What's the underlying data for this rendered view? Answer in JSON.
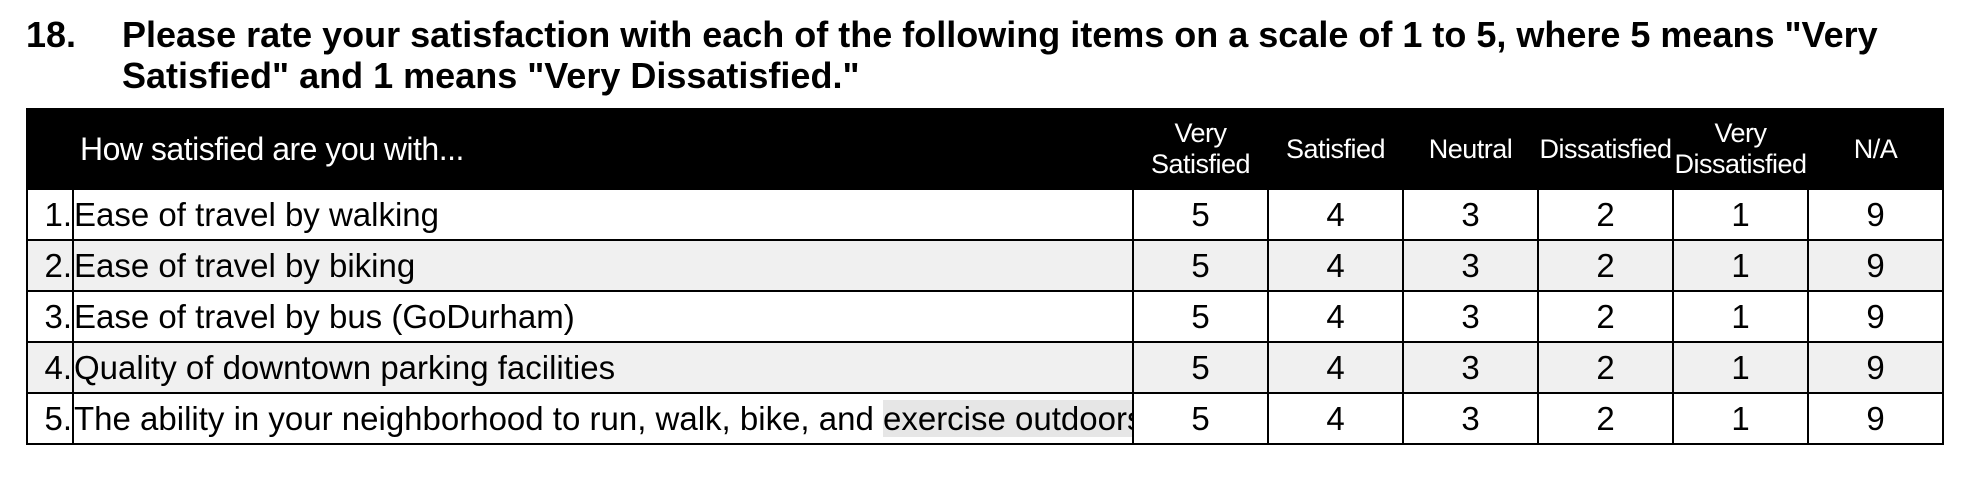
{
  "question": {
    "number": "18.",
    "text": "Please rate your satisfaction with each of the following items on a scale of 1 to 5, where 5 means \"Very Satisfied\" and 1 means \"Very Dissatisfied.\""
  },
  "table": {
    "header": {
      "item_label": "How satisfied are you with...",
      "columns": [
        "Very Satisfied",
        "Satisfied",
        "Neutral",
        "Dissatisfied",
        "Very Dissatisfied",
        "N/A"
      ]
    },
    "rows": [
      {
        "number": "1.",
        "label": "Ease of travel by walking",
        "values": [
          "5",
          "4",
          "3",
          "2",
          "1",
          "9"
        ]
      },
      {
        "number": "2.",
        "label": "Ease of travel by biking",
        "values": [
          "5",
          "4",
          "3",
          "2",
          "1",
          "9"
        ]
      },
      {
        "number": "3.",
        "label": "Ease of travel by bus (GoDurham)",
        "values": [
          "5",
          "4",
          "3",
          "2",
          "1",
          "9"
        ]
      },
      {
        "number": "4.",
        "label": "Quality of downtown parking facilities",
        "values": [
          "5",
          "4",
          "3",
          "2",
          "1",
          "9"
        ]
      },
      {
        "number": "5.",
        "label_main": "The ability in your neighborhood to run, walk, bike, and ",
        "label_highlight": "exercise outdoors",
        "values": [
          "5",
          "4",
          "3",
          "2",
          "1",
          "9"
        ]
      }
    ]
  }
}
